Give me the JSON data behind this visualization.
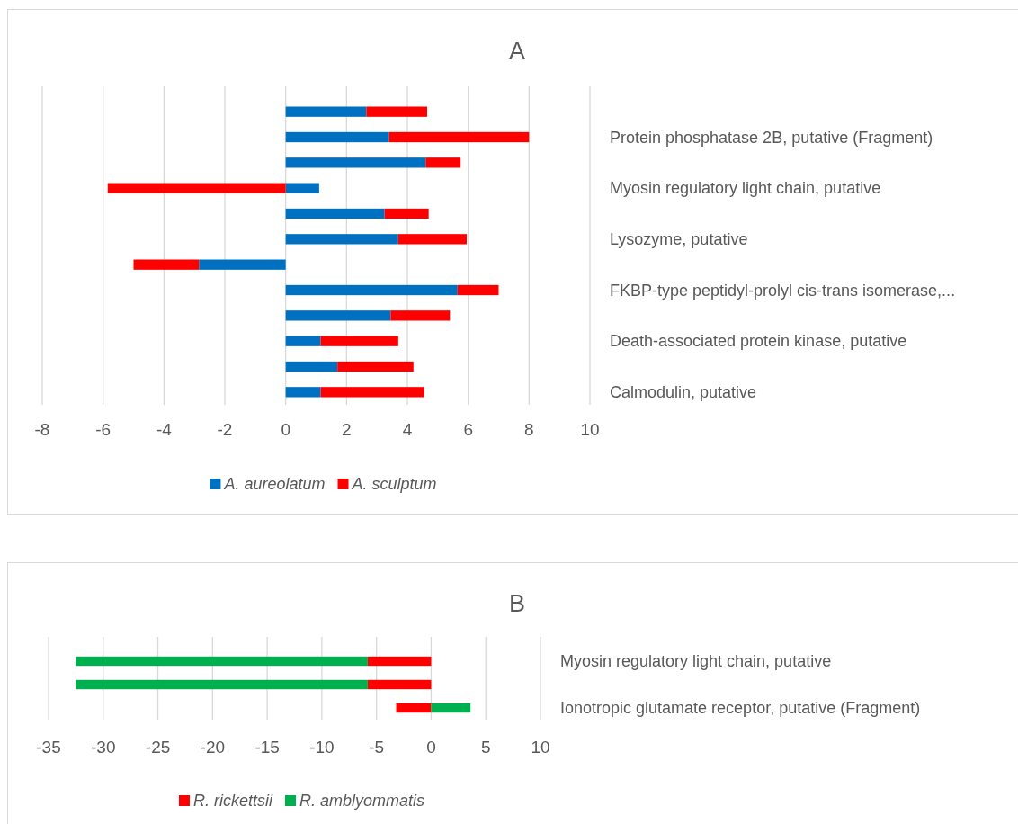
{
  "chart_data": [
    {
      "type": "bar",
      "title": "A",
      "orientation": "horizontal",
      "stacked": true,
      "grid": "x",
      "legend": "bottom",
      "categories": [
        null,
        "Protein phosphatase 2B, putative (Fragment)",
        null,
        "Myosin regulatory light chain, putative",
        null,
        "Lysozyme, putative",
        null,
        "FKBP-type peptidyl-prolyl cis-trans isomerase,...",
        null,
        "Death-associated protein kinase, putative",
        null,
        "Calmodulin, putative"
      ],
      "series": [
        {
          "name": "A. aureolatum",
          "color": "#0070c0",
          "values": [
            2.65,
            3.4,
            4.6,
            1.1,
            3.25,
            3.7,
            -2.85,
            5.65,
            3.45,
            1.15,
            1.7,
            1.15
          ]
        },
        {
          "name": "A. sculptum",
          "color": "#ff0000",
          "values": [
            2.0,
            4.6,
            1.15,
            -5.85,
            1.45,
            2.25,
            -2.15,
            1.35,
            1.95,
            2.55,
            2.5,
            3.4
          ]
        }
      ],
      "xlim": [
        -8,
        10
      ],
      "xticks": [
        -8,
        -6,
        -4,
        -2,
        0,
        2,
        4,
        6,
        8,
        10
      ]
    },
    {
      "type": "bar",
      "title": "B",
      "orientation": "horizontal",
      "stacked": true,
      "grid": "x",
      "legend": "bottom",
      "categories": [
        "Myosin regulatory light chain, putative",
        null,
        "Ionotropic glutamate receptor, putative (Fragment)"
      ],
      "series": [
        {
          "name": "R. rickettsii",
          "color": "#ff0000",
          "values": [
            -5.8,
            -5.8,
            -3.2
          ]
        },
        {
          "name": "R. amblyommatis",
          "color": "#00b050",
          "values": [
            -26.7,
            -26.7,
            3.6
          ]
        }
      ],
      "xlim": [
        -35,
        10
      ],
      "xticks": [
        -35,
        -30,
        -25,
        -20,
        -15,
        -10,
        -5,
        0,
        5,
        10
      ]
    }
  ]
}
